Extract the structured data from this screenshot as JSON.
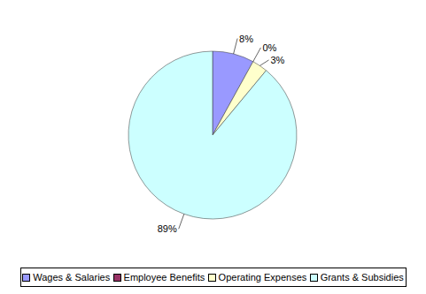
{
  "chart_data": {
    "type": "pie",
    "categories": [
      "Wages & Salaries",
      "Employee Benefits",
      "Operating Expenses",
      "Grants & Subsidies"
    ],
    "values": [
      8,
      0,
      3,
      89
    ],
    "value_labels": [
      "8%",
      "0%",
      "3%",
      "89%"
    ],
    "colors": [
      "#9999ff",
      "#993366",
      "#ffffcc",
      "#ccffff"
    ],
    "data_labels": true,
    "legend": "bottom"
  }
}
